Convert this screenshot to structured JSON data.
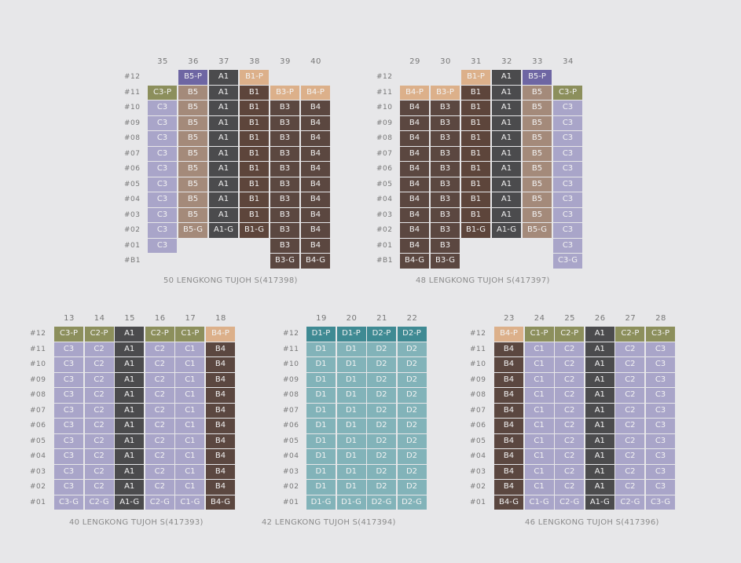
{
  "colors": {
    "C": "#a9a5c9",
    "C-P": "#8c8f5c",
    "A1": "#4b4b4d",
    "B1": "#5d453b",
    "B3": "#5b4740",
    "B4": "#5b4740",
    "B5": "#a48a7a",
    "B-P": "#dcb08a",
    "B5-P": "#6e66a3",
    "D": "#82b3b9",
    "D-P": "#3f8a93",
    "background": "#e7e7e9"
  },
  "blocks": [
    {
      "caption": "50 LENGKONG TUJOH S(417398)",
      "floors": [
        "#12",
        "#11",
        "#10",
        "#09",
        "#08",
        "#07",
        "#06",
        "#05",
        "#04",
        "#03",
        "#02",
        "#01",
        "#B1"
      ],
      "columns": [
        {
          "stack": "35",
          "units": [
            null,
            "C3-P",
            "C3",
            "C3",
            "C3",
            "C3",
            "C3",
            "C3",
            "C3",
            "C3",
            "C3",
            "C3",
            null
          ]
        },
        {
          "stack": "36",
          "units": [
            "B5-P",
            "B5",
            "B5",
            "B5",
            "B5",
            "B5",
            "B5",
            "B5",
            "B5",
            "B5",
            "B5-G",
            null,
            null
          ]
        },
        {
          "stack": "37",
          "units": [
            "A1",
            "A1",
            "A1",
            "A1",
            "A1",
            "A1",
            "A1",
            "A1",
            "A1",
            "A1",
            "A1-G",
            null,
            null
          ]
        },
        {
          "stack": "38",
          "units": [
            "B1-P",
            "B1",
            "B1",
            "B1",
            "B1",
            "B1",
            "B1",
            "B1",
            "B1",
            "B1",
            "B1-G",
            null,
            null
          ]
        },
        {
          "stack": "39",
          "units": [
            null,
            "B3-P",
            "B3",
            "B3",
            "B3",
            "B3",
            "B3",
            "B3",
            "B3",
            "B3",
            "B3",
            "B3",
            "B3-G"
          ]
        },
        {
          "stack": "40",
          "units": [
            null,
            "B4-P",
            "B4",
            "B4",
            "B4",
            "B4",
            "B4",
            "B4",
            "B4",
            "B4",
            "B4",
            "B4",
            "B4-G"
          ]
        }
      ]
    },
    {
      "caption": "48 LENGKONG TUJOH S(417397)",
      "floors": [
        "#12",
        "#11",
        "#10",
        "#09",
        "#08",
        "#07",
        "#06",
        "#05",
        "#04",
        "#03",
        "#02",
        "#01",
        "#B1"
      ],
      "columns": [
        {
          "stack": "29",
          "units": [
            null,
            "B4-P",
            "B4",
            "B4",
            "B4",
            "B4",
            "B4",
            "B4",
            "B4",
            "B4",
            "B4",
            "B4",
            "B4-G"
          ]
        },
        {
          "stack": "30",
          "units": [
            null,
            "B3-P",
            "B3",
            "B3",
            "B3",
            "B3",
            "B3",
            "B3",
            "B3",
            "B3",
            "B3",
            "B3",
            "B3-G"
          ]
        },
        {
          "stack": "31",
          "units": [
            "B1-P",
            "B1",
            "B1",
            "B1",
            "B1",
            "B1",
            "B1",
            "B1",
            "B1",
            "B1",
            "B1-G",
            null,
            null
          ]
        },
        {
          "stack": "32",
          "units": [
            "A1",
            "A1",
            "A1",
            "A1",
            "A1",
            "A1",
            "A1",
            "A1",
            "A1",
            "A1",
            "A1-G",
            null,
            null
          ]
        },
        {
          "stack": "33",
          "units": [
            "B5-P",
            "B5",
            "B5",
            "B5",
            "B5",
            "B5",
            "B5",
            "B5",
            "B5",
            "B5",
            "B5-G",
            null,
            null
          ]
        },
        {
          "stack": "34",
          "units": [
            null,
            "C3-P",
            "C3",
            "C3",
            "C3",
            "C3",
            "C3",
            "C3",
            "C3",
            "C3",
            "C3",
            "C3",
            "C3-G"
          ]
        }
      ]
    },
    {
      "caption": "40 LENGKONG TUJOH S(417393)",
      "floors": [
        "#12",
        "#11",
        "#10",
        "#09",
        "#08",
        "#07",
        "#06",
        "#05",
        "#04",
        "#03",
        "#02",
        "#01"
      ],
      "columns": [
        {
          "stack": "13",
          "units": [
            "C3-P",
            "C3",
            "C3",
            "C3",
            "C3",
            "C3",
            "C3",
            "C3",
            "C3",
            "C3",
            "C3",
            "C3-G"
          ]
        },
        {
          "stack": "14",
          "units": [
            "C2-P",
            "C2",
            "C2",
            "C2",
            "C2",
            "C2",
            "C2",
            "C2",
            "C2",
            "C2",
            "C2",
            "C2-G"
          ]
        },
        {
          "stack": "15",
          "units": [
            "A1",
            "A1",
            "A1",
            "A1",
            "A1",
            "A1",
            "A1",
            "A1",
            "A1",
            "A1",
            "A1",
            "A1-G"
          ]
        },
        {
          "stack": "16",
          "units": [
            "C2-P",
            "C2",
            "C2",
            "C2",
            "C2",
            "C2",
            "C2",
            "C2",
            "C2",
            "C2",
            "C2",
            "C2-G"
          ]
        },
        {
          "stack": "17",
          "units": [
            "C1-P",
            "C1",
            "C1",
            "C1",
            "C1",
            "C1",
            "C1",
            "C1",
            "C1",
            "C1",
            "C1",
            "C1-G"
          ]
        },
        {
          "stack": "18",
          "units": [
            "B4-P",
            "B4",
            "B4",
            "B4",
            "B4",
            "B4",
            "B4",
            "B4",
            "B4",
            "B4",
            "B4",
            "B4-G"
          ]
        }
      ]
    },
    {
      "caption": "42 LENGKONG TUJOH S(417394)",
      "floors": [
        "#12",
        "#11",
        "#10",
        "#09",
        "#08",
        "#07",
        "#06",
        "#05",
        "#04",
        "#03",
        "#02",
        "#01"
      ],
      "columns": [
        {
          "stack": "19",
          "units": [
            "D1-P",
            "D1",
            "D1",
            "D1",
            "D1",
            "D1",
            "D1",
            "D1",
            "D1",
            "D1",
            "D1",
            "D1-G"
          ]
        },
        {
          "stack": "20",
          "units": [
            "D1-P",
            "D1",
            "D1",
            "D1",
            "D1",
            "D1",
            "D1",
            "D1",
            "D1",
            "D1",
            "D1",
            "D1-G"
          ]
        },
        {
          "stack": "21",
          "units": [
            "D2-P",
            "D2",
            "D2",
            "D2",
            "D2",
            "D2",
            "D2",
            "D2",
            "D2",
            "D2",
            "D2",
            "D2-G"
          ]
        },
        {
          "stack": "22",
          "units": [
            "D2-P",
            "D2",
            "D2",
            "D2",
            "D2",
            "D2",
            "D2",
            "D2",
            "D2",
            "D2",
            "D2",
            "D2-G"
          ]
        }
      ]
    },
    {
      "caption": "46 LENGKONG TUJOH S(417396)",
      "floors": [
        "#12",
        "#11",
        "#10",
        "#09",
        "#08",
        "#07",
        "#06",
        "#05",
        "#04",
        "#03",
        "#02",
        "#01"
      ],
      "columns": [
        {
          "stack": "23",
          "units": [
            "B4-P",
            "B4",
            "B4",
            "B4",
            "B4",
            "B4",
            "B4",
            "B4",
            "B4",
            "B4",
            "B4",
            "B4-G"
          ]
        },
        {
          "stack": "24",
          "units": [
            "C1-P",
            "C1",
            "C1",
            "C1",
            "C1",
            "C1",
            "C1",
            "C1",
            "C1",
            "C1",
            "C1",
            "C1-G"
          ]
        },
        {
          "stack": "25",
          "units": [
            "C2-P",
            "C2",
            "C2",
            "C2",
            "C2",
            "C2",
            "C2",
            "C2",
            "C2",
            "C2",
            "C2",
            "C2-G"
          ]
        },
        {
          "stack": "26",
          "units": [
            "A1",
            "A1",
            "A1",
            "A1",
            "A1",
            "A1",
            "A1",
            "A1",
            "A1",
            "A1",
            "A1",
            "A1-G"
          ]
        },
        {
          "stack": "27",
          "units": [
            "C2-P",
            "C2",
            "C2",
            "C2",
            "C2",
            "C2",
            "C2",
            "C2",
            "C2",
            "C2",
            "C2",
            "C2-G"
          ]
        },
        {
          "stack": "28",
          "units": [
            "C3-P",
            "C3",
            "C3",
            "C3",
            "C3",
            "C3",
            "C3",
            "C3",
            "C3",
            "C3",
            "C3",
            "C3-G"
          ]
        }
      ]
    }
  ]
}
